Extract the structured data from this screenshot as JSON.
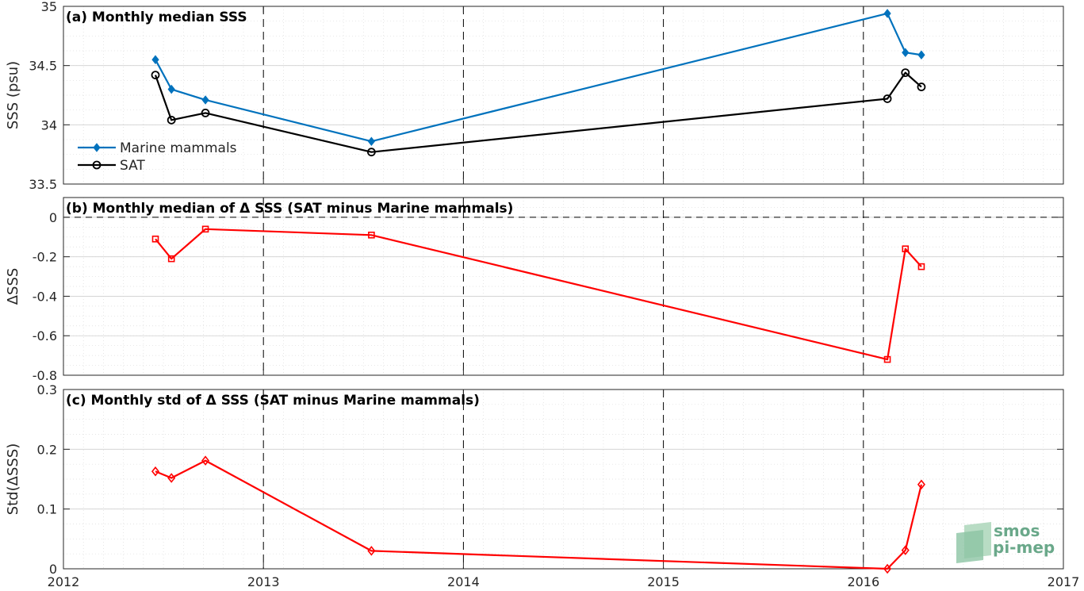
{
  "chart_data": [
    {
      "type": "line",
      "title": "(a) Monthly median SSS",
      "ylabel": "SSS (psu)",
      "xlim": [
        2012,
        2017
      ],
      "ylim": [
        33.5,
        35
      ],
      "yticks": [
        33.5,
        34,
        34.5,
        35
      ],
      "yticklabels": [
        "33.5",
        "34",
        "34.5",
        "35"
      ],
      "grid": true,
      "legend_position": "left",
      "series": [
        {
          "name": "Marine mammals",
          "color": "#0072BD",
          "marker": "diamond-filled",
          "x": [
            2012.46,
            2012.54,
            2012.71,
            2013.54,
            2016.12,
            2016.21,
            2016.29
          ],
          "y": [
            34.55,
            34.3,
            34.21,
            33.86,
            34.94,
            34.61,
            34.59
          ]
        },
        {
          "name": "SAT",
          "color": "#000000",
          "marker": "circle-open",
          "x": [
            2012.46,
            2012.54,
            2012.71,
            2013.54,
            2016.12,
            2016.21,
            2016.29
          ],
          "y": [
            34.42,
            34.04,
            34.1,
            33.77,
            34.22,
            34.44,
            34.32
          ]
        }
      ]
    },
    {
      "type": "line",
      "title": "(b) Monthly median of Δ SSS (SAT minus Marine mammals)",
      "ylabel": "ΔSSS",
      "xlim": [
        2012,
        2017
      ],
      "ylim": [
        -0.8,
        0.1
      ],
      "yticks": [
        -0.8,
        -0.6,
        -0.4,
        -0.2,
        0
      ],
      "yticklabels": [
        "-0.8",
        "-0.6",
        "-0.4",
        "-0.2",
        "0"
      ],
      "grid": true,
      "series": [
        {
          "color": "#FF0000",
          "marker": "square-open",
          "x": [
            2012.46,
            2012.54,
            2012.71,
            2013.54,
            2016.12,
            2016.21,
            2016.29
          ],
          "y": [
            -0.11,
            -0.21,
            -0.06,
            -0.09,
            -0.72,
            -0.16,
            -0.25
          ]
        }
      ]
    },
    {
      "type": "line",
      "title": "(c) Monthly std of Δ SSS (SAT minus Marine mammals)",
      "ylabel": "Std(ΔSSS)",
      "xlim": [
        2012,
        2017
      ],
      "ylim": [
        0,
        0.3
      ],
      "yticks": [
        0,
        0.1,
        0.2,
        0.3
      ],
      "yticklabels": [
        "0",
        "0.1",
        "0.2",
        "0.3"
      ],
      "xticks": [
        2012,
        2013,
        2014,
        2015,
        2016,
        2017
      ],
      "xticklabels": [
        "2012",
        "2013",
        "2014",
        "2015",
        "2016",
        "2017"
      ],
      "grid": true,
      "series": [
        {
          "color": "#FF0000",
          "marker": "diamond-open",
          "x": [
            2012.46,
            2012.54,
            2012.71,
            2013.54,
            2016.12,
            2016.21,
            2016.29
          ],
          "y": [
            0.163,
            0.152,
            0.181,
            0.03,
            0.0,
            0.031,
            0.141
          ]
        }
      ]
    }
  ],
  "logo": {
    "line1": "smos",
    "line2": "pi-mep"
  }
}
